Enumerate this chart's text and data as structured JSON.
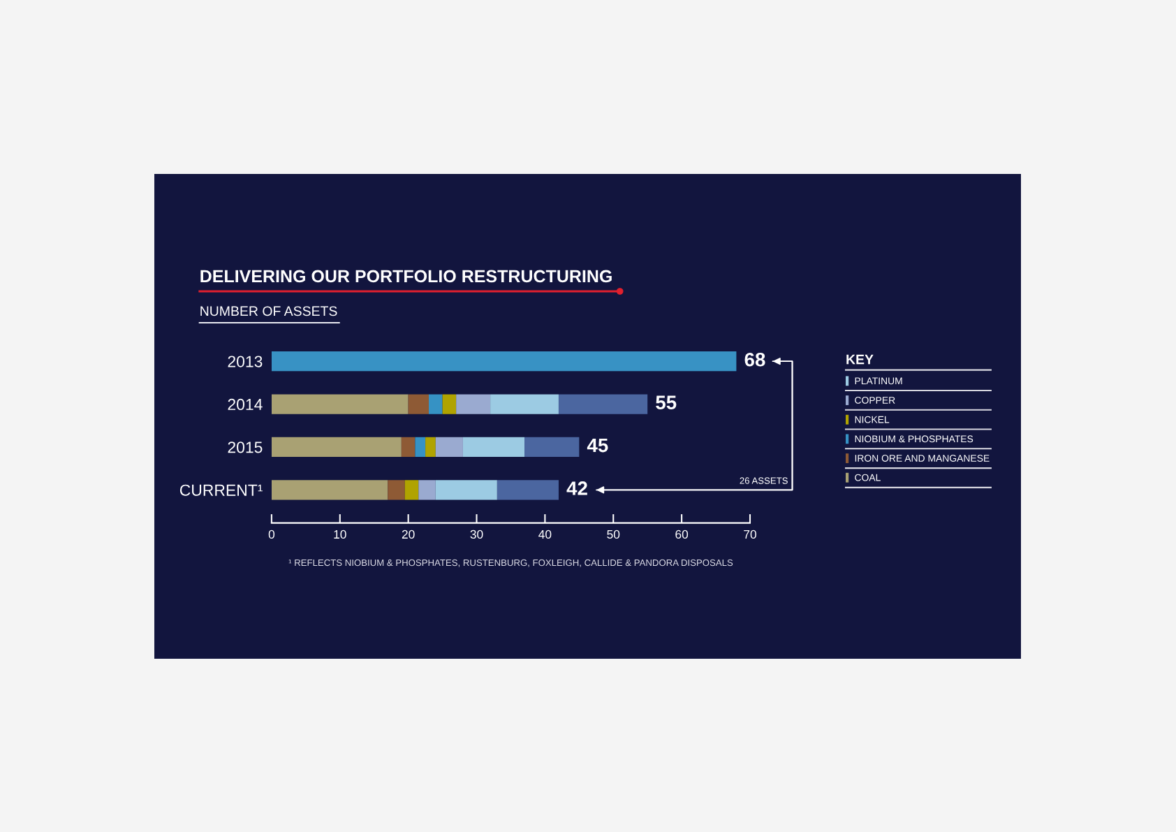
{
  "chart_data": {
    "type": "bar",
    "orientation": "horizontal",
    "stacked": true,
    "title": "DELIVERING OUR PORTFOLIO RESTRUCTURING",
    "subtitle": "NUMBER OF ASSETS",
    "legend_title": "KEY",
    "categories": [
      "2013",
      "2014",
      "2015",
      "CURRENT¹"
    ],
    "series": [
      {
        "color": "#3892c4",
        "values": [
          68,
          null,
          null,
          null
        ]
      },
      {
        "name": "COAL",
        "color": "#a9a173",
        "values": [
          null,
          20,
          19,
          17
        ]
      },
      {
        "name": "IRON ORE AND MANGANESE",
        "color": "#8e5a35",
        "values": [
          null,
          3,
          2,
          2.5
        ]
      },
      {
        "name": "NIOBIUM & PHOSPHATES",
        "color": "#3692c4",
        "values": [
          null,
          2,
          1.5,
          null
        ]
      },
      {
        "name": "NICKEL",
        "color": "#b0a300",
        "values": [
          null,
          2,
          1.5,
          2
        ]
      },
      {
        "name": "COPPER",
        "color": "#9aaad0",
        "values": [
          null,
          5,
          4,
          2.5
        ]
      },
      {
        "name": "PLATINUM",
        "color": "#9ccbe3",
        "values": [
          null,
          10,
          9,
          9
        ]
      },
      {
        "color": "#4b66a0",
        "values": [
          null,
          13,
          8,
          9
        ]
      }
    ],
    "totals": [
      "68",
      "55",
      "45",
      "42"
    ],
    "xlim": [
      0,
      70
    ],
    "xticks": [
      0,
      10,
      20,
      30,
      40,
      50,
      60,
      70
    ],
    "grid": false,
    "legend": "right",
    "annotations": [
      "26 ASSETS",
      "¹ REFLECTS NIOBIUM & PHOSPHATES, RUSTENBURG, FOXLEIGH, CALLIDE & PANDORA DISPOSALS"
    ]
  }
}
